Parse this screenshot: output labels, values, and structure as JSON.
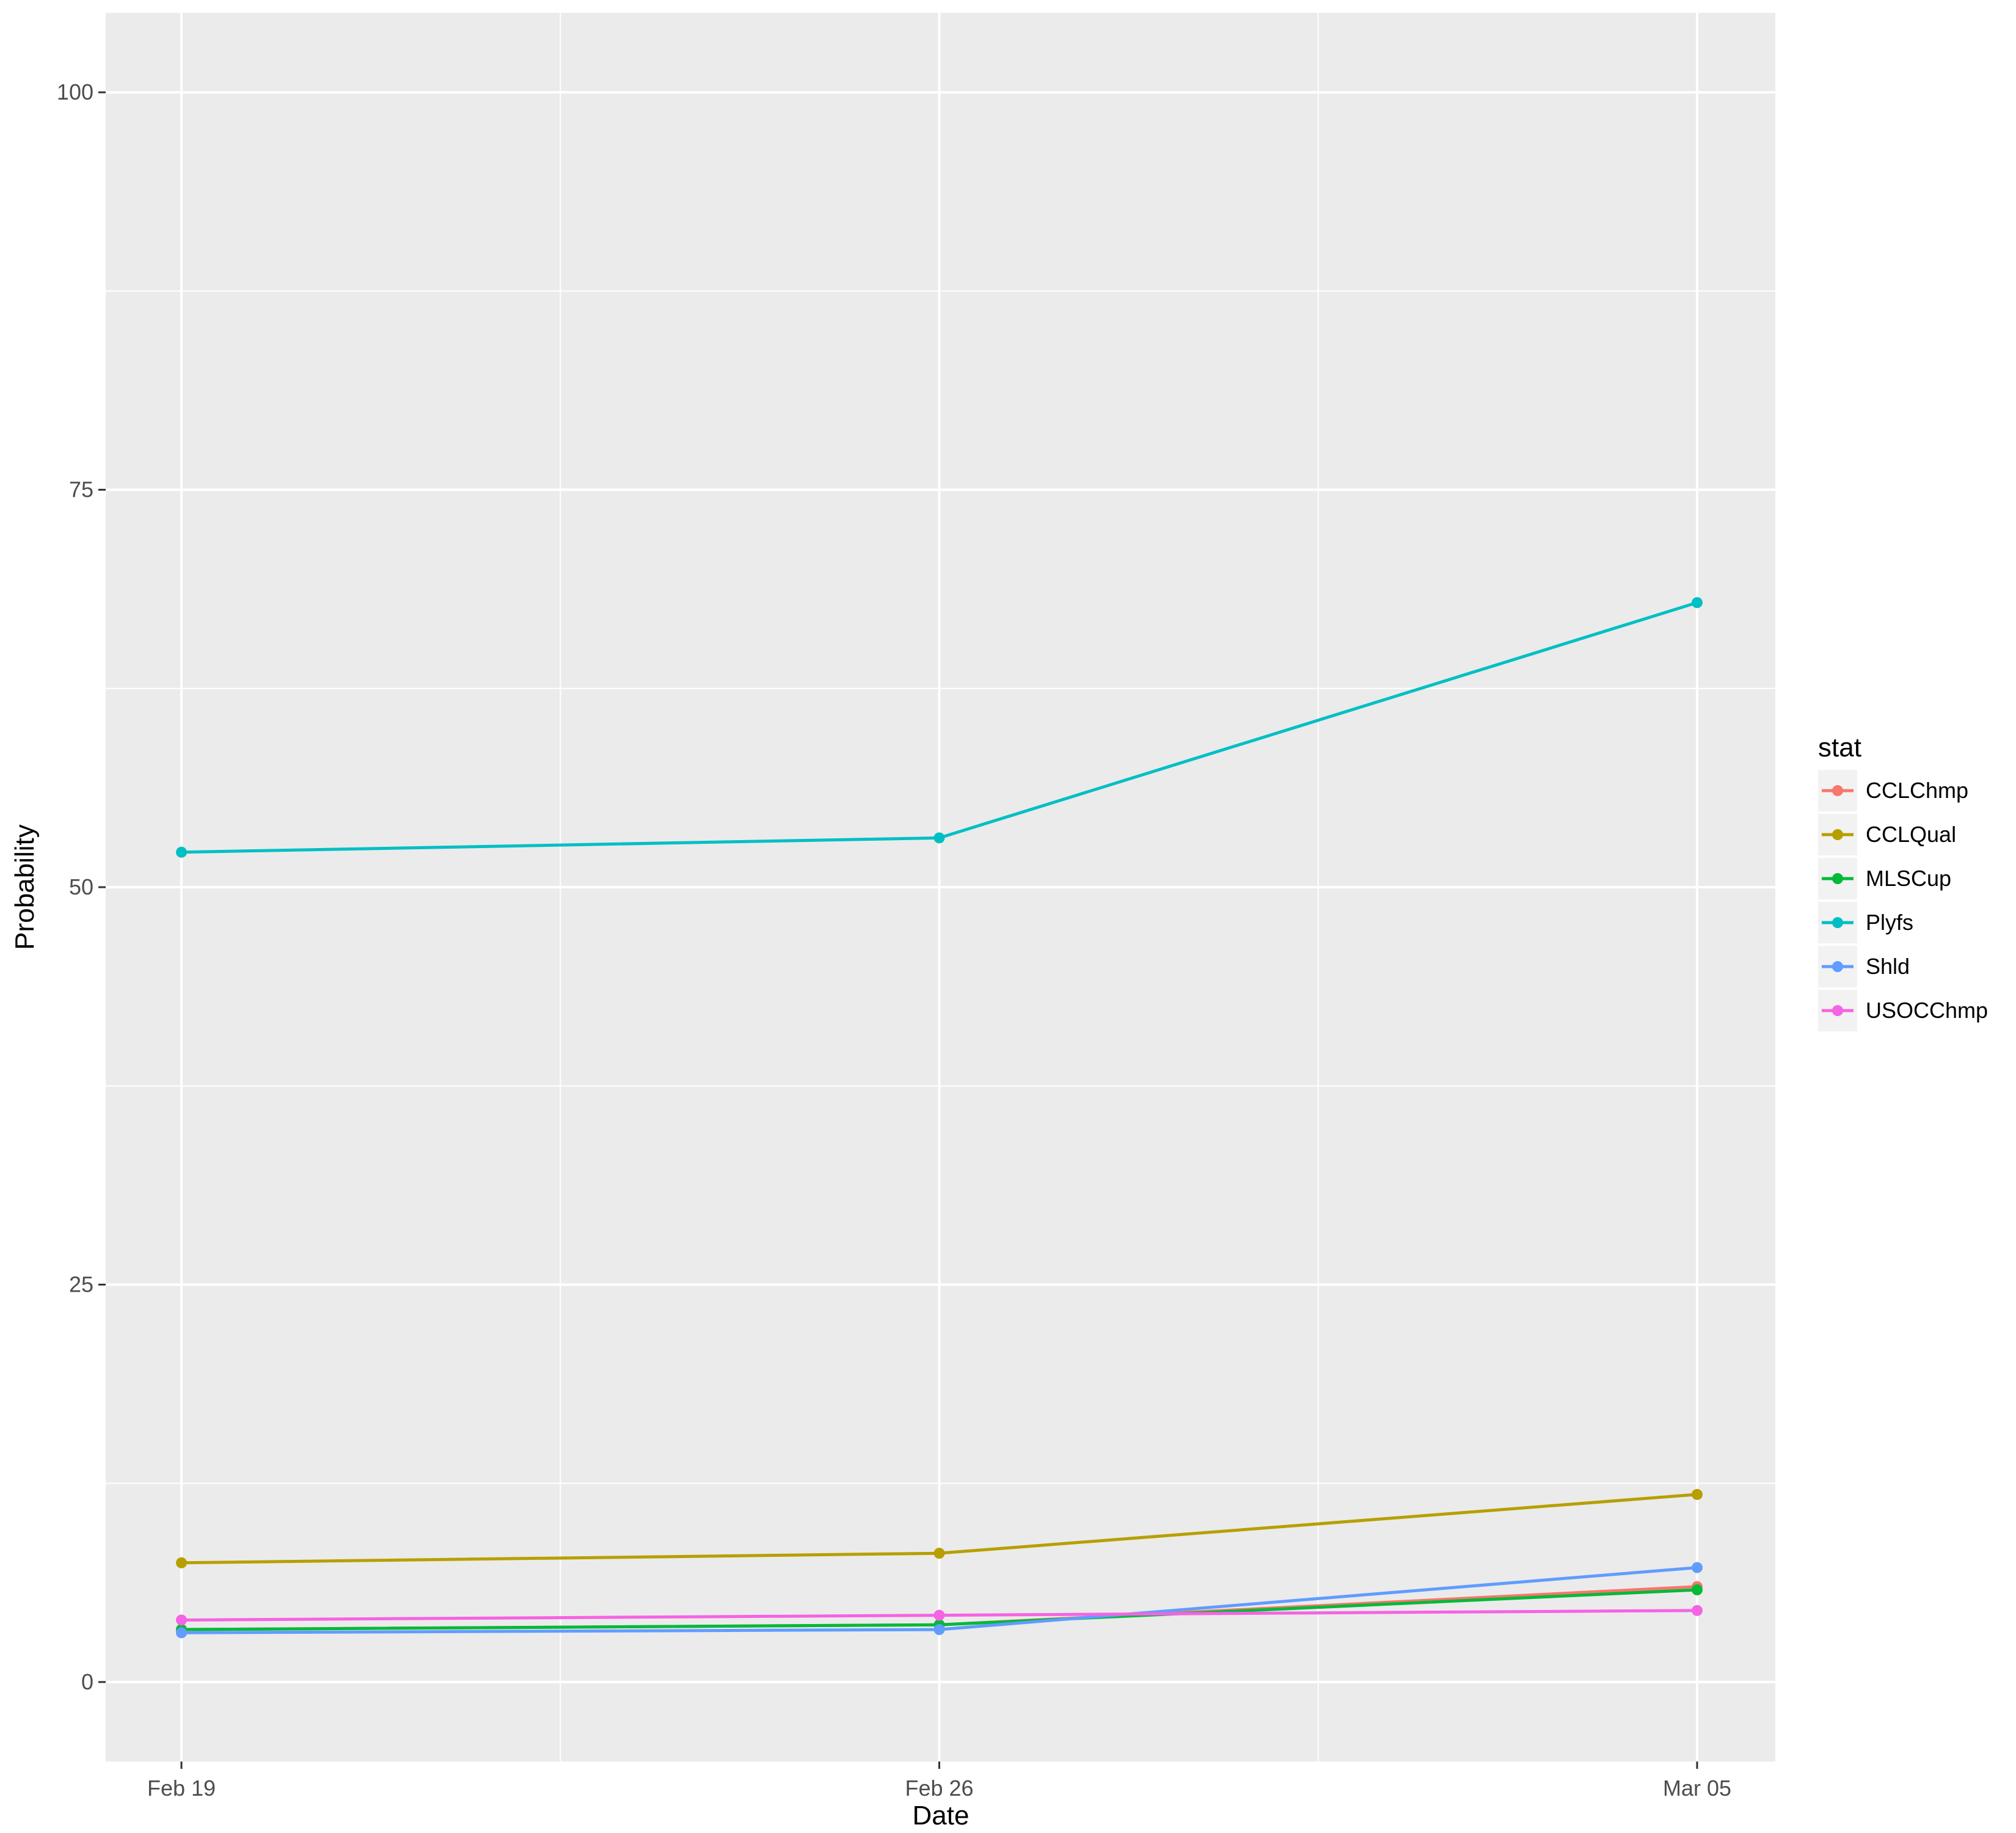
{
  "chart_data": {
    "type": "line",
    "title": "",
    "xlabel": "Date",
    "ylabel": "Probability",
    "x": [
      "Feb 19",
      "Feb 26",
      "Mar 05"
    ],
    "xlim": [
      "Feb 19",
      "Mar 05"
    ],
    "ylim": [
      -5,
      105
    ],
    "y_ticks": [
      0,
      25,
      50,
      75,
      100
    ],
    "grid": true,
    "background": "#EBEBEB",
    "legend_title": "stat",
    "legend_position": "right",
    "series": [
      {
        "name": "CCLChmp",
        "color": "#F8766D",
        "values": [
          3.3,
          3.6,
          6.0
        ]
      },
      {
        "name": "CCLQual",
        "color": "#B79F00",
        "values": [
          7.5,
          8.1,
          11.8
        ]
      },
      {
        "name": "MLSCup",
        "color": "#00BA38",
        "values": [
          3.3,
          3.6,
          5.8
        ]
      },
      {
        "name": "Plyfs",
        "color": "#00BFC4",
        "values": [
          52.2,
          53.1,
          67.9
        ]
      },
      {
        "name": "Shld",
        "color": "#619CFF",
        "values": [
          3.1,
          3.3,
          7.2
        ]
      },
      {
        "name": "USOCChmp",
        "color": "#F564E3",
        "values": [
          3.9,
          4.2,
          4.5
        ]
      }
    ]
  }
}
